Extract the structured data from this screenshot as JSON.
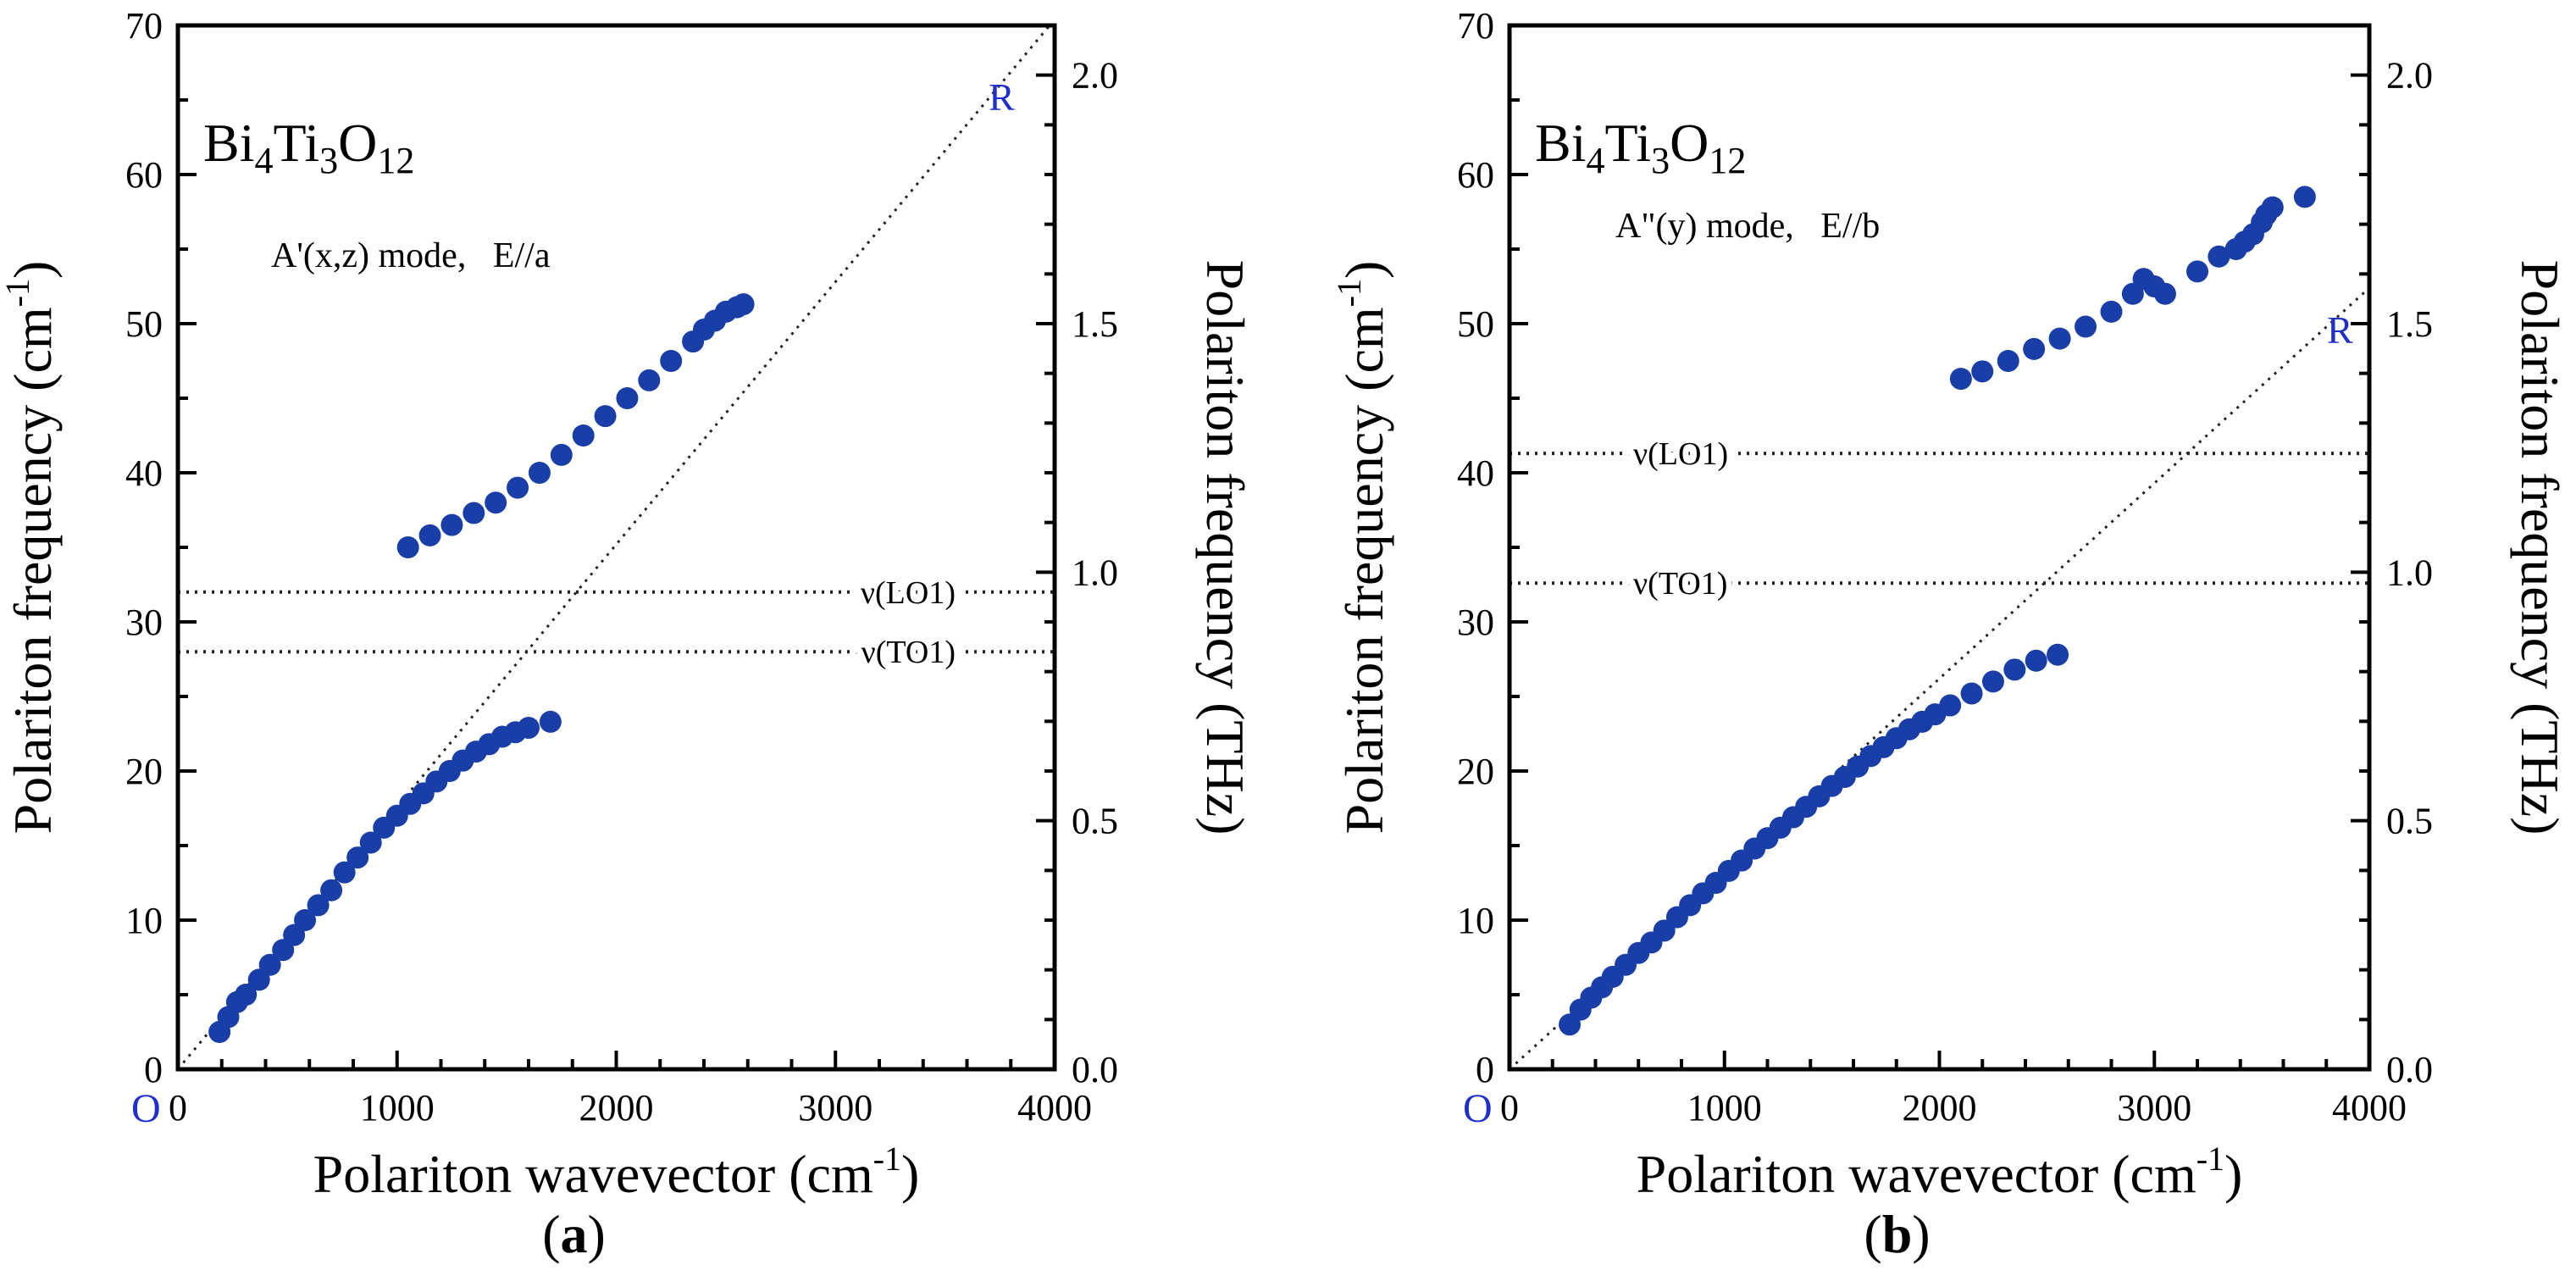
{
  "chart_data": [
    {
      "type": "scatter",
      "panel_label": "(a)",
      "panel_letter": "a",
      "formula": {
        "el1": "Bi",
        "sub1": "4",
        "el2": "Ti",
        "sub2": "3",
        "el3": "O",
        "sub3": "12"
      },
      "mode_label": "A'(x,z) mode,   E//a",
      "xlabel": {
        "main": "Polariton wavevector (cm",
        "sup": "-1",
        "end": ")"
      },
      "ylabel": {
        "main": "Polariton frequency (cm",
        "sup": "-1",
        "end": ")"
      },
      "y2label": "Polariton frequency (THz)",
      "xlim": [
        0,
        4000
      ],
      "ylim": [
        0,
        70
      ],
      "y2lim": [
        0,
        2.1
      ],
      "xticks": [
        0,
        1000,
        2000,
        3000,
        4000
      ],
      "yticks": [
        0,
        10,
        20,
        30,
        40,
        50,
        60,
        70
      ],
      "y2ticks": [
        0.0,
        0.5,
        1.0,
        1.5,
        2.0
      ],
      "xtick_labels": [
        "0",
        "1000",
        "2000",
        "3000",
        "4000"
      ],
      "ytick_labels": [
        "0",
        "10",
        "20",
        "30",
        "40",
        "50",
        "60",
        "70"
      ],
      "y2tick_labels": [
        "0.0",
        "0.5",
        "1.0",
        "1.5",
        "2.0"
      ],
      "origin_label": "O",
      "light_line": {
        "label": "R",
        "slope": 0.0176
      },
      "hlines": [
        {
          "label": "ν(LO1)",
          "y": 32
        },
        {
          "label": "ν(TO1)",
          "y": 28
        }
      ],
      "point_color": "#1a3ea8",
      "series": [
        {
          "name": "lower branch",
          "x": [
            190,
            230,
            270,
            310,
            370,
            420,
            480,
            530,
            580,
            640,
            700,
            760,
            820,
            880,
            940,
            1000,
            1060,
            1120,
            1180,
            1240,
            1300,
            1360,
            1420,
            1480,
            1540,
            1600,
            1700
          ],
          "y": [
            2.5,
            3.5,
            4.5,
            5.0,
            6.0,
            7.0,
            8.0,
            9.0,
            10.0,
            11.0,
            12.0,
            13.2,
            14.2,
            15.2,
            16.2,
            17.0,
            17.8,
            18.5,
            19.3,
            20.0,
            20.7,
            21.3,
            21.8,
            22.3,
            22.6,
            22.9,
            23.3
          ]
        },
        {
          "name": "upper branch",
          "x": [
            1050,
            1150,
            1250,
            1350,
            1450,
            1550,
            1650,
            1750,
            1850,
            1950,
            2050,
            2150,
            2250,
            2350,
            2400,
            2450,
            2500,
            2550,
            2580
          ],
          "y": [
            35.0,
            35.8,
            36.5,
            37.3,
            38.0,
            39.0,
            40.0,
            41.2,
            42.5,
            43.8,
            45.0,
            46.2,
            47.5,
            48.8,
            49.6,
            50.2,
            50.8,
            51.1,
            51.3
          ]
        }
      ]
    },
    {
      "type": "scatter",
      "panel_label": "(b)",
      "panel_letter": "b",
      "formula": {
        "el1": "Bi",
        "sub1": "4",
        "el2": "Ti",
        "sub2": "3",
        "el3": "O",
        "sub3": "12"
      },
      "mode_label": "A\"(y) mode,   E//b",
      "xlabel": {
        "main": "Polariton wavevector (cm",
        "sup": "-1",
        "end": ")"
      },
      "ylabel": {
        "main": "Polariton frequency (cm",
        "sup": "-1",
        "end": ")"
      },
      "y2label": "Polariton frequency (THz)",
      "xlim": [
        0,
        4000
      ],
      "ylim": [
        0,
        70
      ],
      "y2lim": [
        0,
        2.1
      ],
      "xticks": [
        0,
        1000,
        2000,
        3000,
        4000
      ],
      "yticks": [
        0,
        10,
        20,
        30,
        40,
        50,
        60,
        70
      ],
      "y2ticks": [
        0.0,
        0.5,
        1.0,
        1.5,
        2.0
      ],
      "xtick_labels": [
        "0",
        "1000",
        "2000",
        "3000",
        "4000"
      ],
      "ytick_labels": [
        "0",
        "10",
        "20",
        "30",
        "40",
        "50",
        "60",
        "70"
      ],
      "y2tick_labels": [
        "0.0",
        "0.5",
        "1.0",
        "1.5",
        "2.0"
      ],
      "origin_label": "O",
      "light_line": {
        "label": "R",
        "slope": 0.0131
      },
      "hlines": [
        {
          "label": "ν(LO1)",
          "y": 41.3
        },
        {
          "label": "ν(TO1)",
          "y": 32.6
        }
      ],
      "point_color": "#1a3ea8",
      "series": [
        {
          "name": "lower branch",
          "x": [
            280,
            330,
            380,
            430,
            480,
            540,
            600,
            660,
            720,
            780,
            840,
            900,
            960,
            1020,
            1080,
            1140,
            1200,
            1260,
            1320,
            1380,
            1440,
            1500,
            1560,
            1620,
            1680,
            1740,
            1800,
            1860,
            1920,
            1980,
            2050,
            2150,
            2250,
            2350,
            2450,
            2550
          ],
          "y": [
            3.0,
            4.0,
            4.8,
            5.5,
            6.2,
            7.0,
            7.8,
            8.5,
            9.3,
            10.2,
            11.0,
            11.8,
            12.5,
            13.3,
            14.0,
            14.8,
            15.5,
            16.2,
            16.9,
            17.6,
            18.3,
            19.0,
            19.6,
            20.3,
            21.0,
            21.6,
            22.2,
            22.8,
            23.3,
            23.8,
            24.4,
            25.2,
            26.0,
            26.8,
            27.4,
            27.8
          ]
        },
        {
          "name": "upper branch",
          "x": [
            2100,
            2200,
            2320,
            2440,
            2560,
            2680,
            2800,
            2900,
            2950,
            3000,
            3050,
            3200,
            3300,
            3380,
            3420,
            3460,
            3500,
            3520,
            3550,
            3700
          ],
          "y": [
            46.3,
            46.8,
            47.5,
            48.3,
            49.0,
            49.8,
            50.8,
            52.0,
            53.0,
            52.5,
            52.0,
            53.5,
            54.5,
            55.0,
            55.5,
            56.0,
            56.8,
            57.3,
            57.8,
            58.5
          ]
        }
      ]
    }
  ]
}
